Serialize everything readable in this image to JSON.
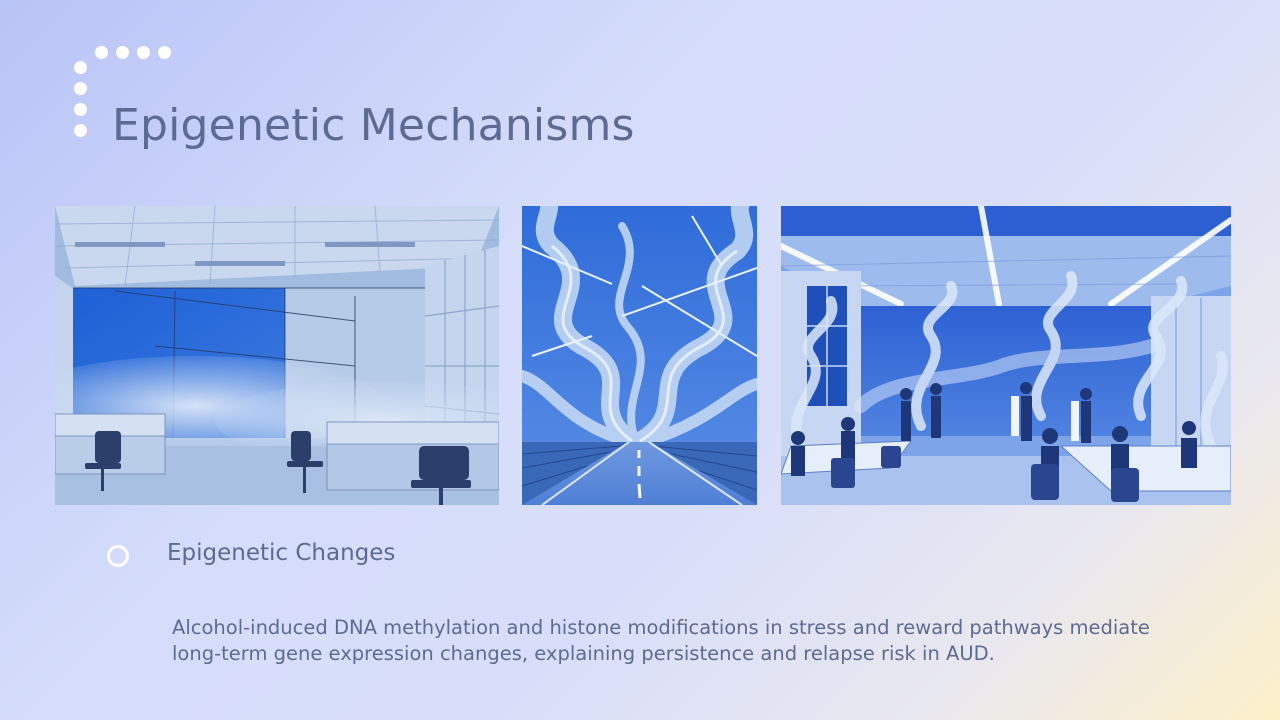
{
  "slide": {
    "title": "Epigenetic Mechanisms",
    "section_heading": "Epigenetic Changes",
    "body": "Alcohol-induced DNA methylation and histone modifications in stress and reward pathways mediate long-term gene expression changes, explaining persistence and relapse risk in AUD."
  }
}
